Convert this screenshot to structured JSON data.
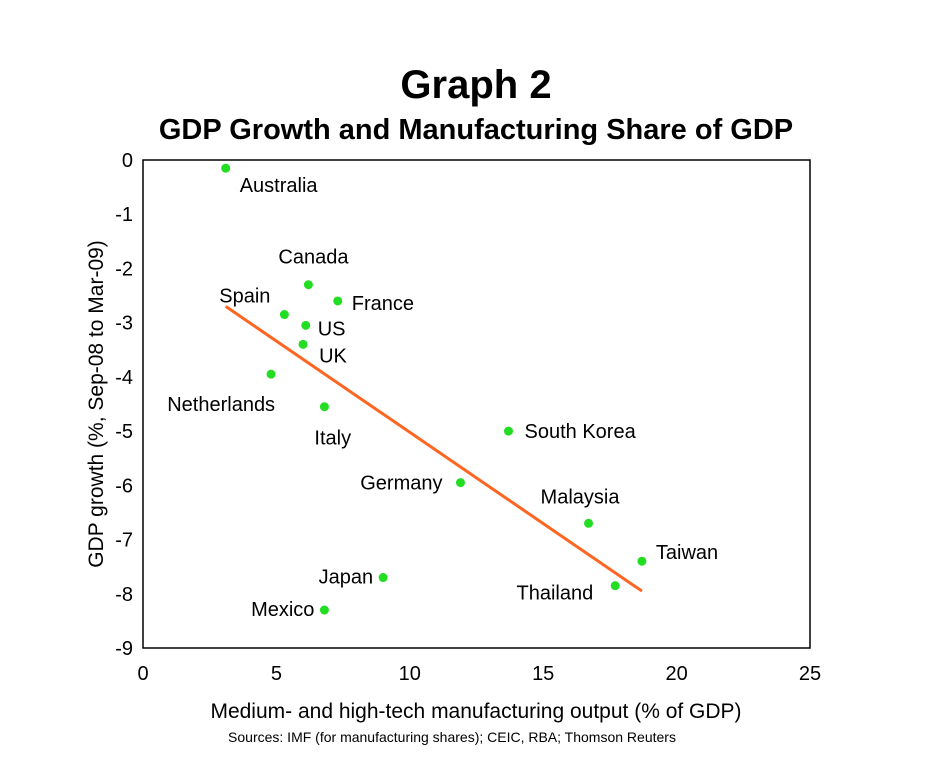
{
  "chart_data": {
    "type": "scatter",
    "title": "Graph 2",
    "subtitle": "GDP Growth and Manufacturing Share of GDP",
    "xlabel": "Medium- and high-tech manufacturing output (% of GDP)",
    "ylabel": "GDP growth (%, Sep-08 to Mar-09)",
    "source": "Sources: IMF (for manufacturing shares); CEIC, RBA; Thomson Reuters",
    "xlim": [
      0,
      25
    ],
    "ylim": [
      -9,
      0
    ],
    "x_ticks": [
      0,
      5,
      10,
      15,
      20,
      25
    ],
    "y_ticks": [
      0,
      -1,
      -2,
      -3,
      -4,
      -5,
      -6,
      -7,
      -8,
      -9
    ],
    "grid": false,
    "point_color": "#22dd22",
    "trend_color": "#ff6622",
    "points": [
      {
        "label": "Australia",
        "x": 3.1,
        "y": -0.15
      },
      {
        "label": "Canada",
        "x": 6.2,
        "y": -2.3
      },
      {
        "label": "France",
        "x": 7.3,
        "y": -2.6
      },
      {
        "label": "Spain",
        "x": 5.3,
        "y": -2.85
      },
      {
        "label": "US",
        "x": 6.1,
        "y": -3.05
      },
      {
        "label": "UK",
        "x": 6.0,
        "y": -3.4
      },
      {
        "label": "Netherlands",
        "x": 4.8,
        "y": -3.95
      },
      {
        "label": "Italy",
        "x": 6.8,
        "y": -4.55
      },
      {
        "label": "South Korea",
        "x": 13.7,
        "y": -5.0
      },
      {
        "label": "Germany",
        "x": 11.9,
        "y": -5.95
      },
      {
        "label": "Malaysia",
        "x": 16.7,
        "y": -6.7
      },
      {
        "label": "Taiwan",
        "x": 18.7,
        "y": -7.4
      },
      {
        "label": "Thailand",
        "x": 17.7,
        "y": -7.85
      },
      {
        "label": "Japan",
        "x": 9.0,
        "y": -7.7
      },
      {
        "label": "Mexico",
        "x": 6.8,
        "y": -8.3
      }
    ],
    "trend_line": {
      "x": [
        3.1,
        18.7
      ],
      "y": [
        -2.7,
        -7.95
      ]
    }
  }
}
